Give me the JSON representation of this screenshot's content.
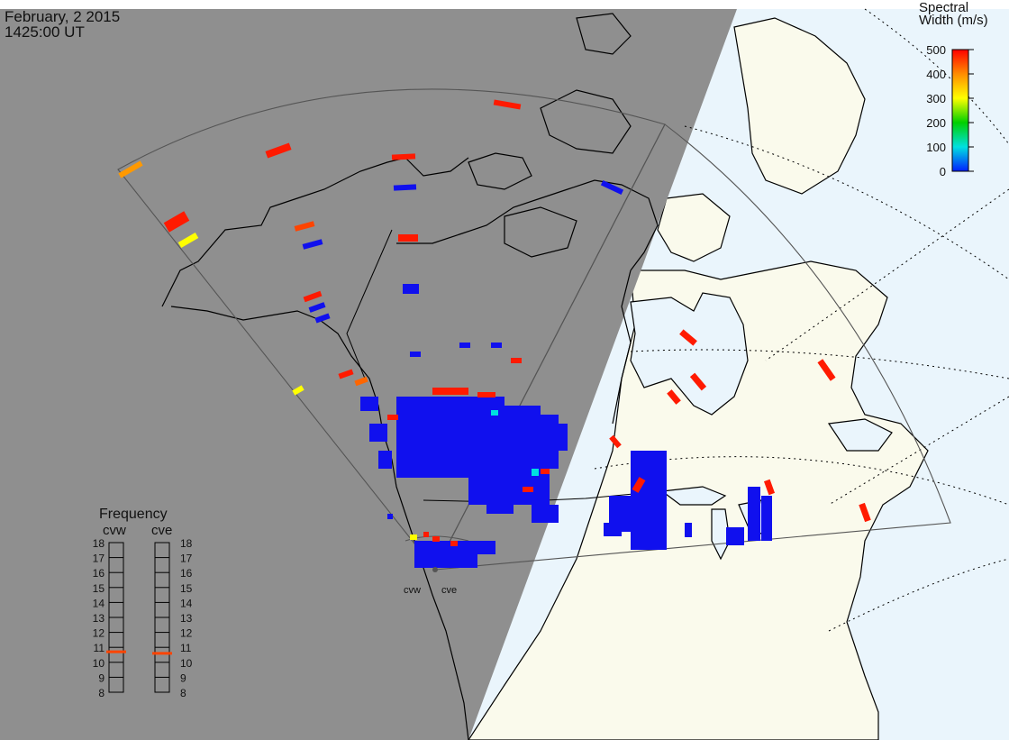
{
  "header": {
    "date": "February, 2 2015",
    "time": "1425:00 UT"
  },
  "colorbar": {
    "title_line1": "Spectral",
    "title_line2": "Width (m/s)",
    "ticks": [
      "500",
      "400",
      "300",
      "200",
      "100",
      "0"
    ],
    "colors": [
      "#ff0000",
      "#ff8c00",
      "#ffff00",
      "#00d000",
      "#00e0e0",
      "#0020ff"
    ]
  },
  "frequency": {
    "title": "Frequency",
    "radars": [
      "cvw",
      "cve"
    ],
    "ticks": [
      "18",
      "17",
      "16",
      "15",
      "14",
      "13",
      "12",
      "11",
      "10",
      "9",
      "8"
    ],
    "cvw_marker_mhz": 10.7,
    "cve_marker_mhz": 10.6,
    "marker_color": "#ff4400"
  },
  "stations": {
    "west": "cvw",
    "east": "cve"
  },
  "colors": {
    "night_shade": "#8f8f8f",
    "land_day": "#fafaec",
    "ocean_day": "#eaf5fc",
    "echo_low": "#1010ee",
    "echo_high": "#ff1a00"
  }
}
